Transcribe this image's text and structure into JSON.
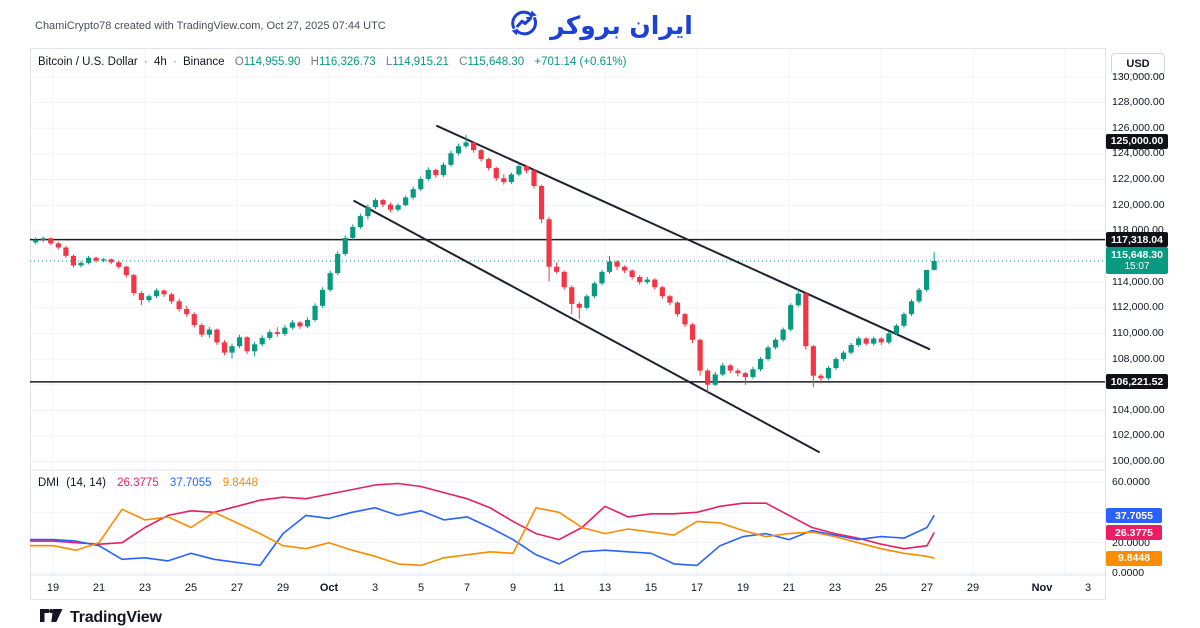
{
  "attribution": "ChamiCrypto78 created with TradingView.com, Oct 27, 2025 07:44 UTC",
  "brand": {
    "logo_text": "ایران بروکر",
    "logo_color": "#1c40d8"
  },
  "symbol_bar": {
    "title": "Bitcoin / U.S. Dollar",
    "separator": "·",
    "interval": "4h",
    "exchange": "Binance",
    "ohlc": [
      {
        "label": "O",
        "value": "114,955.90"
      },
      {
        "label": "H",
        "value": "116,326.73"
      },
      {
        "label": "L",
        "value": "114,915.21"
      },
      {
        "label": "C",
        "value": "115,648.30"
      }
    ],
    "change": "+701.14 (+0.61%)"
  },
  "price_axis": {
    "currency": "USD",
    "max_label": 130000,
    "min_label": 100000,
    "step": 2000,
    "level_badges": [
      {
        "price": 125000.0,
        "text": "125,000.00"
      },
      {
        "price": 117318.04,
        "text": "117,318.04"
      },
      {
        "price": 106221.52,
        "text": "106,221.52"
      }
    ],
    "price_badge": {
      "price": 115648.3,
      "text": "115,648.30",
      "time": "15:07"
    }
  },
  "time_axis": {
    "labels": [
      {
        "text": "19",
        "day": 0
      },
      {
        "text": "21",
        "day": 2
      },
      {
        "text": "23",
        "day": 4
      },
      {
        "text": "25",
        "day": 6
      },
      {
        "text": "27",
        "day": 8
      },
      {
        "text": "29",
        "day": 10
      },
      {
        "text": "Oct",
        "day": 12,
        "bold": true
      },
      {
        "text": "3",
        "day": 14
      },
      {
        "text": "5",
        "day": 16
      },
      {
        "text": "7",
        "day": 18
      },
      {
        "text": "9",
        "day": 20
      },
      {
        "text": "11",
        "day": 22
      },
      {
        "text": "13",
        "day": 24
      },
      {
        "text": "15",
        "day": 26
      },
      {
        "text": "17",
        "day": 28
      },
      {
        "text": "19",
        "day": 30
      },
      {
        "text": "21",
        "day": 32
      },
      {
        "text": "23",
        "day": 34
      },
      {
        "text": "25",
        "day": 36
      },
      {
        "text": "27",
        "day": 38
      },
      {
        "text": "29",
        "day": 40
      },
      {
        "text": "Nov",
        "day": 43,
        "bold": true
      },
      {
        "text": "3",
        "day": 45
      }
    ]
  },
  "dmi_legend": {
    "title": "DMI",
    "params": "(14, 14)",
    "values": [
      {
        "text": "26.3775",
        "color": "#e91e63"
      },
      {
        "text": "37.7055",
        "color": "#2962ff"
      },
      {
        "text": "9.8448",
        "color": "#fb8c00"
      }
    ]
  },
  "footer": {
    "wordmark": "TradingView"
  },
  "colors": {
    "up": "#089981",
    "down": "#f23645",
    "badge_dark": "#0f1117",
    "badge_teal": "#089981",
    "blue": "#2962ff",
    "pink": "#e91e63",
    "orange": "#fb8c00",
    "grid": "#f0f3fa",
    "frame": "#e0e3eb",
    "trend": "#1e222d",
    "hline": "#1c1c1c"
  },
  "chart_data": {
    "type": "candlestick",
    "price_pane": {
      "symbol": "BTCUSD",
      "interval": "4h",
      "exchange": "Binance",
      "first_candle_day": "Sep 18",
      "candles_per_day": 3,
      "current_price": 115648.3,
      "horizontal_lines": [
        117318.04,
        106221.52
      ],
      "trendlines": [
        {
          "from_day": 16.7,
          "from_price": 126180,
          "to_day": 38.1,
          "to_price": 108780
        },
        {
          "from_day": 13.1,
          "from_price": 120330,
          "to_day": 33.3,
          "to_price": 100750
        }
      ],
      "ohlc": [
        [
          117100,
          117480,
          116950,
          117300
        ],
        [
          117300,
          117560,
          117120,
          117420
        ],
        [
          117420,
          117500,
          116880,
          117020
        ],
        [
          117020,
          117150,
          116550,
          116700
        ],
        [
          116700,
          116820,
          115900,
          116050
        ],
        [
          116050,
          116160,
          115150,
          115300
        ],
        [
          115300,
          115650,
          115150,
          115500
        ],
        [
          115500,
          116050,
          115380,
          115900
        ],
        [
          115900,
          115980,
          115520,
          115680
        ],
        [
          115680,
          115900,
          115550,
          115780
        ],
        [
          115780,
          115850,
          115400,
          115550
        ],
        [
          115550,
          115650,
          115050,
          115200
        ],
        [
          115200,
          115280,
          114350,
          114550
        ],
        [
          114550,
          114650,
          112950,
          113150
        ],
        [
          113150,
          113300,
          112200,
          112600
        ],
        [
          112600,
          113050,
          112400,
          112900
        ],
        [
          112900,
          113500,
          112750,
          113350
        ],
        [
          113350,
          113420,
          112850,
          113050
        ],
        [
          113050,
          113180,
          112300,
          112500
        ],
        [
          112500,
          112700,
          111700,
          111900
        ],
        [
          111900,
          112150,
          111300,
          111500
        ],
        [
          111500,
          111650,
          110450,
          110650
        ],
        [
          110650,
          110800,
          109700,
          109900
        ],
        [
          109900,
          110500,
          109650,
          110300
        ],
        [
          110300,
          110380,
          109100,
          109300
        ],
        [
          109300,
          109480,
          108300,
          108500
        ],
        [
          108500,
          109200,
          108050,
          109000
        ],
        [
          109000,
          109900,
          108850,
          109700
        ],
        [
          109700,
          109780,
          108400,
          108600
        ],
        [
          108600,
          109350,
          108200,
          109150
        ],
        [
          109150,
          109850,
          109000,
          109650
        ],
        [
          109650,
          110300,
          109500,
          110100
        ],
        [
          110100,
          110480,
          109750,
          109950
        ],
        [
          109950,
          110650,
          109800,
          110450
        ],
        [
          110450,
          111050,
          110300,
          110850
        ],
        [
          110850,
          110950,
          110350,
          110550
        ],
        [
          110550,
          111250,
          110400,
          111050
        ],
        [
          111050,
          112350,
          110900,
          112150
        ],
        [
          112150,
          113600,
          112000,
          113400
        ],
        [
          113400,
          114900,
          113250,
          114700
        ],
        [
          114700,
          116400,
          114550,
          116200
        ],
        [
          116200,
          117650,
          116050,
          117450
        ],
        [
          117450,
          118500,
          117300,
          118300
        ],
        [
          118300,
          119350,
          118150,
          119150
        ],
        [
          119150,
          120050,
          118900,
          119850
        ],
        [
          119850,
          120550,
          119700,
          120400
        ],
        [
          120400,
          120500,
          119850,
          120050
        ],
        [
          120050,
          120200,
          119450,
          119650
        ],
        [
          119650,
          120150,
          119500,
          120000
        ],
        [
          120000,
          120750,
          119900,
          120600
        ],
        [
          120600,
          121450,
          120450,
          121250
        ],
        [
          121250,
          122250,
          121100,
          122050
        ],
        [
          122050,
          122950,
          121900,
          122750
        ],
        [
          122750,
          122850,
          122150,
          122350
        ],
        [
          122350,
          123350,
          122200,
          123150
        ],
        [
          123150,
          124250,
          123000,
          124050
        ],
        [
          124050,
          124800,
          123900,
          124600
        ],
        [
          124600,
          125500,
          124450,
          124900
        ],
        [
          124900,
          125000,
          124100,
          124300
        ],
        [
          124300,
          124400,
          123400,
          123600
        ],
        [
          123600,
          123700,
          122700,
          122900
        ],
        [
          122900,
          123000,
          121900,
          122100
        ],
        [
          122100,
          122400,
          121600,
          121800
        ],
        [
          121800,
          122550,
          121650,
          122400
        ],
        [
          122400,
          123250,
          122250,
          123050
        ],
        [
          123050,
          123150,
          122500,
          122700
        ],
        [
          122700,
          122800,
          121300,
          121500
        ],
        [
          121500,
          121600,
          118600,
          118900
        ],
        [
          118900,
          119100,
          114050,
          115200
        ],
        [
          115200,
          115550,
          114650,
          114800
        ],
        [
          114800,
          114900,
          113400,
          113600
        ],
        [
          113600,
          113750,
          111500,
          112300
        ],
        [
          112300,
          112450,
          111100,
          112000
        ],
        [
          112000,
          113050,
          111850,
          112900
        ],
        [
          112900,
          114050,
          112750,
          113900
        ],
        [
          113900,
          114950,
          113750,
          114800
        ],
        [
          114800,
          116050,
          114650,
          115600
        ],
        [
          115600,
          115700,
          114950,
          115200
        ],
        [
          115200,
          115300,
          114700,
          114900
        ],
        [
          114900,
          115000,
          114200,
          114400
        ],
        [
          114400,
          114550,
          113800,
          114000
        ],
        [
          114000,
          114400,
          113850,
          114200
        ],
        [
          114200,
          114300,
          113400,
          113600
        ],
        [
          113600,
          113700,
          112700,
          112900
        ],
        [
          112900,
          113000,
          112200,
          112400
        ],
        [
          112400,
          112500,
          111300,
          111500
        ],
        [
          111500,
          111600,
          110500,
          110700
        ],
        [
          110700,
          110800,
          109250,
          109500
        ],
        [
          109500,
          109600,
          106700,
          107100
        ],
        [
          107100,
          107250,
          105300,
          106000
        ],
        [
          106000,
          107000,
          105900,
          106800
        ],
        [
          106800,
          107700,
          106650,
          107500
        ],
        [
          107500,
          107600,
          106900,
          107100
        ],
        [
          107100,
          107250,
          106650,
          106900
        ],
        [
          106900,
          107000,
          106000,
          106600
        ],
        [
          106600,
          107400,
          106450,
          107200
        ],
        [
          107200,
          108150,
          107050,
          108000
        ],
        [
          108000,
          109050,
          107850,
          108900
        ],
        [
          108900,
          109650,
          108750,
          109500
        ],
        [
          109500,
          110450,
          109350,
          110300
        ],
        [
          110300,
          112350,
          110150,
          112200
        ],
        [
          112200,
          113500,
          112050,
          113100
        ],
        [
          113100,
          113200,
          108750,
          109000
        ],
        [
          109000,
          109100,
          105800,
          106700
        ],
        [
          106700,
          106850,
          106100,
          106500
        ],
        [
          106500,
          107450,
          106350,
          107300
        ],
        [
          107300,
          108150,
          107150,
          108000
        ],
        [
          108000,
          108650,
          107850,
          108500
        ],
        [
          108500,
          109250,
          108350,
          109100
        ],
        [
          109100,
          109750,
          108950,
          109600
        ],
        [
          109600,
          109700,
          109050,
          109200
        ],
        [
          109200,
          109750,
          109050,
          109600
        ],
        [
          109600,
          109700,
          109100,
          109300
        ],
        [
          109300,
          110150,
          109150,
          110000
        ],
        [
          110000,
          110750,
          109850,
          110600
        ],
        [
          110600,
          111650,
          110450,
          111500
        ],
        [
          111500,
          112650,
          111350,
          112500
        ],
        [
          112500,
          113550,
          112350,
          113400
        ],
        [
          113400,
          114970,
          113250,
          114950
        ],
        [
          114955.9,
          116326.73,
          114915.21,
          115648.3
        ]
      ]
    },
    "dmi_pane": {
      "indicator": "DMI (14, 14)",
      "axis": {
        "min": 0,
        "max": 60,
        "labels": [
          60,
          20,
          0
        ]
      },
      "days": [
        -1,
        0,
        1,
        2,
        3,
        4,
        5,
        6,
        7,
        8,
        9,
        10,
        11,
        12,
        13,
        14,
        15,
        16,
        17,
        18,
        19,
        20,
        21,
        22,
        23,
        24,
        25,
        26,
        27,
        28,
        29,
        30,
        31,
        32,
        33,
        34,
        35,
        36,
        37,
        38,
        38.3
      ],
      "series": [
        {
          "name": "pink",
          "color": "#e91e63",
          "last": 26.3775,
          "values": [
            21,
            21,
            20,
            19,
            20,
            30,
            38,
            41,
            40,
            44,
            48,
            50,
            49,
            52,
            55,
            58,
            59,
            57,
            53,
            49,
            43,
            34,
            26,
            22,
            30,
            44,
            37,
            39,
            39,
            40,
            44,
            46,
            46,
            38,
            30,
            26,
            23,
            19,
            16,
            18,
            26.3775
          ]
        },
        {
          "name": "blue",
          "color": "#2962ff",
          "last": 37.7055,
          "values": [
            22,
            22,
            21,
            18,
            9,
            10,
            8,
            13,
            9,
            7,
            5,
            26,
            38,
            36,
            40,
            43,
            38,
            41,
            35,
            37,
            30,
            22,
            12,
            6,
            14,
            15,
            14,
            13,
            6,
            5,
            18,
            24,
            26,
            22,
            28,
            25,
            22,
            24,
            23,
            30,
            37.7055
          ]
        },
        {
          "name": "orange",
          "color": "#fb8c00",
          "last": 9.8448,
          "values": [
            18,
            18,
            15,
            20,
            42,
            35,
            37,
            30,
            40,
            33,
            26,
            18,
            16,
            20,
            15,
            11,
            6,
            5,
            10,
            12,
            14,
            13,
            43,
            40,
            30,
            26,
            29,
            27,
            25,
            34,
            33,
            28,
            24,
            26,
            27,
            24,
            20,
            16,
            13,
            11,
            9.8448
          ]
        }
      ]
    }
  }
}
